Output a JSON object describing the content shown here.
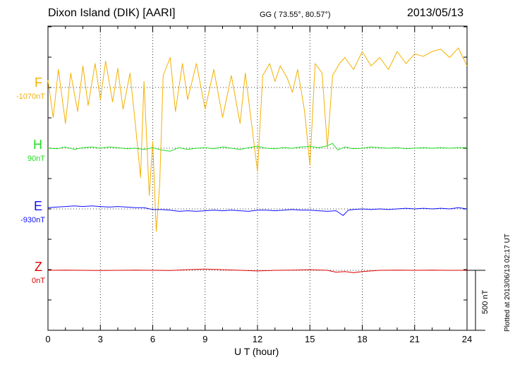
{
  "header": {
    "title": "Dixon Island (DIK)  [AARI]",
    "coords": "GG ( 73.55°,  80.57°)",
    "date": "2013/05/13"
  },
  "footer": {
    "plotted": "Plotted at 2013/06/13 02:17 UT",
    "scale_label": "500 nT"
  },
  "chart_data": {
    "type": "line",
    "xlabel": "U T (hour)",
    "xlim": [
      0,
      24
    ],
    "xticks": [
      "0",
      "3",
      "6",
      "9",
      "12",
      "15",
      "18",
      "21",
      "24"
    ],
    "grid": true,
    "scale_bar_nT": 500,
    "series": [
      {
        "name": "F",
        "offset_label": "-1070nT",
        "color": "#f5b000",
        "points": [
          [
            0,
            60
          ],
          [
            0.3,
            -250
          ],
          [
            0.6,
            150
          ],
          [
            1,
            -300
          ],
          [
            1.3,
            120
          ],
          [
            1.7,
            -200
          ],
          [
            2,
            180
          ],
          [
            2.3,
            -150
          ],
          [
            2.7,
            200
          ],
          [
            3,
            -100
          ],
          [
            3.3,
            220
          ],
          [
            3.7,
            -120
          ],
          [
            4,
            160
          ],
          [
            4.3,
            -180
          ],
          [
            4.7,
            120
          ],
          [
            5,
            -300
          ],
          [
            5.3,
            -750
          ],
          [
            5.5,
            50
          ],
          [
            5.8,
            -900
          ],
          [
            6,
            -450
          ],
          [
            6.2,
            -1200
          ],
          [
            6.4,
            -800
          ],
          [
            6.6,
            100
          ],
          [
            7,
            250
          ],
          [
            7.3,
            -200
          ],
          [
            7.7,
            200
          ],
          [
            8,
            -100
          ],
          [
            8.5,
            200
          ],
          [
            9,
            -180
          ],
          [
            9.5,
            150
          ],
          [
            10,
            -250
          ],
          [
            10.5,
            100
          ],
          [
            11,
            -300
          ],
          [
            11.3,
            120
          ],
          [
            11.7,
            -350
          ],
          [
            12,
            -700
          ],
          [
            12.3,
            100
          ],
          [
            12.7,
            200
          ],
          [
            13,
            50
          ],
          [
            13.3,
            180
          ],
          [
            13.7,
            80
          ],
          [
            14,
            -40
          ],
          [
            14.3,
            150
          ],
          [
            14.7,
            -200
          ],
          [
            15,
            -650
          ],
          [
            15.3,
            200
          ],
          [
            15.7,
            120
          ],
          [
            16,
            -500
          ],
          [
            16.3,
            100
          ],
          [
            16.7,
            200
          ],
          [
            17,
            250
          ],
          [
            17.5,
            150
          ],
          [
            18,
            300
          ],
          [
            18.5,
            180
          ],
          [
            19,
            250
          ],
          [
            19.5,
            150
          ],
          [
            20,
            300
          ],
          [
            20.5,
            200
          ],
          [
            21,
            280
          ],
          [
            21.5,
            260
          ],
          [
            22,
            300
          ],
          [
            22.5,
            320
          ],
          [
            23,
            250
          ],
          [
            23.5,
            330
          ],
          [
            24,
            180
          ]
        ]
      },
      {
        "name": "H",
        "offset_label": "90nT",
        "color": "#22dd22",
        "points": [
          [
            0,
            0
          ],
          [
            0.5,
            -5
          ],
          [
            1,
            10
          ],
          [
            1.5,
            -10
          ],
          [
            2,
            5
          ],
          [
            2.5,
            10
          ],
          [
            3,
            0
          ],
          [
            3.5,
            10
          ],
          [
            4,
            5
          ],
          [
            4.5,
            -5
          ],
          [
            5,
            0
          ],
          [
            5.5,
            -10
          ],
          [
            6,
            5
          ],
          [
            6.5,
            -15
          ],
          [
            7,
            -25
          ],
          [
            7.5,
            5
          ],
          [
            8,
            -10
          ],
          [
            8.5,
            0
          ],
          [
            9,
            5
          ],
          [
            9.5,
            -5
          ],
          [
            10,
            10
          ],
          [
            10.5,
            0
          ],
          [
            11,
            -10
          ],
          [
            11.5,
            5
          ],
          [
            12,
            15
          ],
          [
            12.5,
            0
          ],
          [
            13,
            -5
          ],
          [
            13.5,
            5
          ],
          [
            14,
            0
          ],
          [
            14.5,
            10
          ],
          [
            15,
            15
          ],
          [
            15.5,
            5
          ],
          [
            16,
            20
          ],
          [
            16.3,
            40
          ],
          [
            16.6,
            -15
          ],
          [
            17,
            10
          ],
          [
            17.5,
            -5
          ],
          [
            18,
            0
          ],
          [
            18.5,
            10
          ],
          [
            19,
            5
          ],
          [
            19.5,
            0
          ],
          [
            20,
            5
          ],
          [
            20.5,
            -5
          ],
          [
            21,
            0
          ],
          [
            21.5,
            5
          ],
          [
            22,
            0
          ],
          [
            22.5,
            5
          ],
          [
            23,
            0
          ],
          [
            23.5,
            5
          ],
          [
            24,
            5
          ]
        ]
      },
      {
        "name": "E",
        "offset_label": "-930nT",
        "color": "#1010ff",
        "points": [
          [
            0,
            10
          ],
          [
            0.5,
            15
          ],
          [
            1,
            20
          ],
          [
            1.5,
            25
          ],
          [
            2,
            20
          ],
          [
            2.5,
            25
          ],
          [
            3,
            20
          ],
          [
            3.5,
            15
          ],
          [
            4,
            20
          ],
          [
            4.5,
            15
          ],
          [
            5,
            10
          ],
          [
            5.5,
            10
          ],
          [
            6,
            -5
          ],
          [
            6.5,
            -5
          ],
          [
            7,
            -10
          ],
          [
            7.5,
            -20
          ],
          [
            8,
            -15
          ],
          [
            8.5,
            -20
          ],
          [
            9,
            -15
          ],
          [
            9.5,
            -10
          ],
          [
            10,
            -15
          ],
          [
            10.5,
            -10
          ],
          [
            11,
            -15
          ],
          [
            11.5,
            -20
          ],
          [
            12,
            -10
          ],
          [
            12.5,
            -10
          ],
          [
            13,
            -15
          ],
          [
            13.5,
            -10
          ],
          [
            14,
            -5
          ],
          [
            14.5,
            -10
          ],
          [
            15,
            -10
          ],
          [
            15.5,
            -15
          ],
          [
            16,
            -20
          ],
          [
            16.5,
            -15
          ],
          [
            16.9,
            -55
          ],
          [
            17.2,
            -10
          ],
          [
            17.5,
            -5
          ],
          [
            18,
            0
          ],
          [
            18.5,
            -5
          ],
          [
            19,
            0
          ],
          [
            19.5,
            -5
          ],
          [
            20,
            0
          ],
          [
            20.5,
            5
          ],
          [
            21,
            0
          ],
          [
            21.5,
            5
          ],
          [
            22,
            0
          ],
          [
            22.5,
            5
          ],
          [
            23,
            0
          ],
          [
            23.5,
            10
          ],
          [
            24,
            0
          ]
        ]
      },
      {
        "name": "Z",
        "offset_label": "0nT",
        "color": "#dd0000",
        "points": [
          [
            0,
            0
          ],
          [
            1,
            2
          ],
          [
            2,
            0
          ],
          [
            3,
            -2
          ],
          [
            4,
            0
          ],
          [
            5,
            2
          ],
          [
            6,
            0
          ],
          [
            7,
            -2
          ],
          [
            8,
            5
          ],
          [
            9,
            10
          ],
          [
            10,
            5
          ],
          [
            11,
            0
          ],
          [
            12,
            -5
          ],
          [
            13,
            0
          ],
          [
            14,
            2
          ],
          [
            15,
            5
          ],
          [
            16,
            0
          ],
          [
            16.5,
            -15
          ],
          [
            17,
            -10
          ],
          [
            17.5,
            -20
          ],
          [
            18,
            -10
          ],
          [
            18.5,
            -5
          ],
          [
            19,
            0
          ],
          [
            20,
            2
          ],
          [
            21,
            0
          ],
          [
            22,
            2
          ],
          [
            23,
            0
          ],
          [
            24,
            0
          ]
        ]
      }
    ]
  }
}
